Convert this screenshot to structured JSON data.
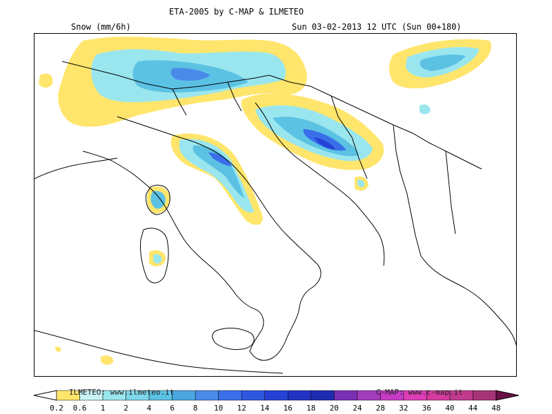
{
  "header": {
    "title": "ETA-2005 by C-MAP & ILMETEO",
    "variable": "Snow (mm/6h)",
    "valid_time": "Sun 03-02-2013 12 UTC (Sun 00+180)"
  },
  "map": {
    "region": "Italy and central Mediterranean",
    "field": "6-hour snowfall"
  },
  "legend": {
    "thresholds": [
      "0.2",
      "0.6",
      "1",
      "2",
      "4",
      "6",
      "8",
      "10",
      "12",
      "14",
      "16",
      "18",
      "20",
      "24",
      "28",
      "32",
      "36",
      "40",
      "44",
      "48"
    ],
    "colors": [
      "#ffe56b",
      "#c8f4f6",
      "#9ae6ef",
      "#7ed6ea",
      "#5cc2e4",
      "#4aa7e2",
      "#4a8bea",
      "#3a6fea",
      "#2f58e0",
      "#2641d6",
      "#2233c4",
      "#1e2bb0",
      "#7b2fb5",
      "#a33bbd",
      "#c73cc7",
      "#de3db8",
      "#d53ca0",
      "#c13a8d",
      "#a83478",
      "#8c1f5c",
      "#6b0f45"
    ],
    "credit_left": "ILMETEO: www.ilmeteo.it",
    "credit_right": "C-MAP: www.c-map.it"
  }
}
